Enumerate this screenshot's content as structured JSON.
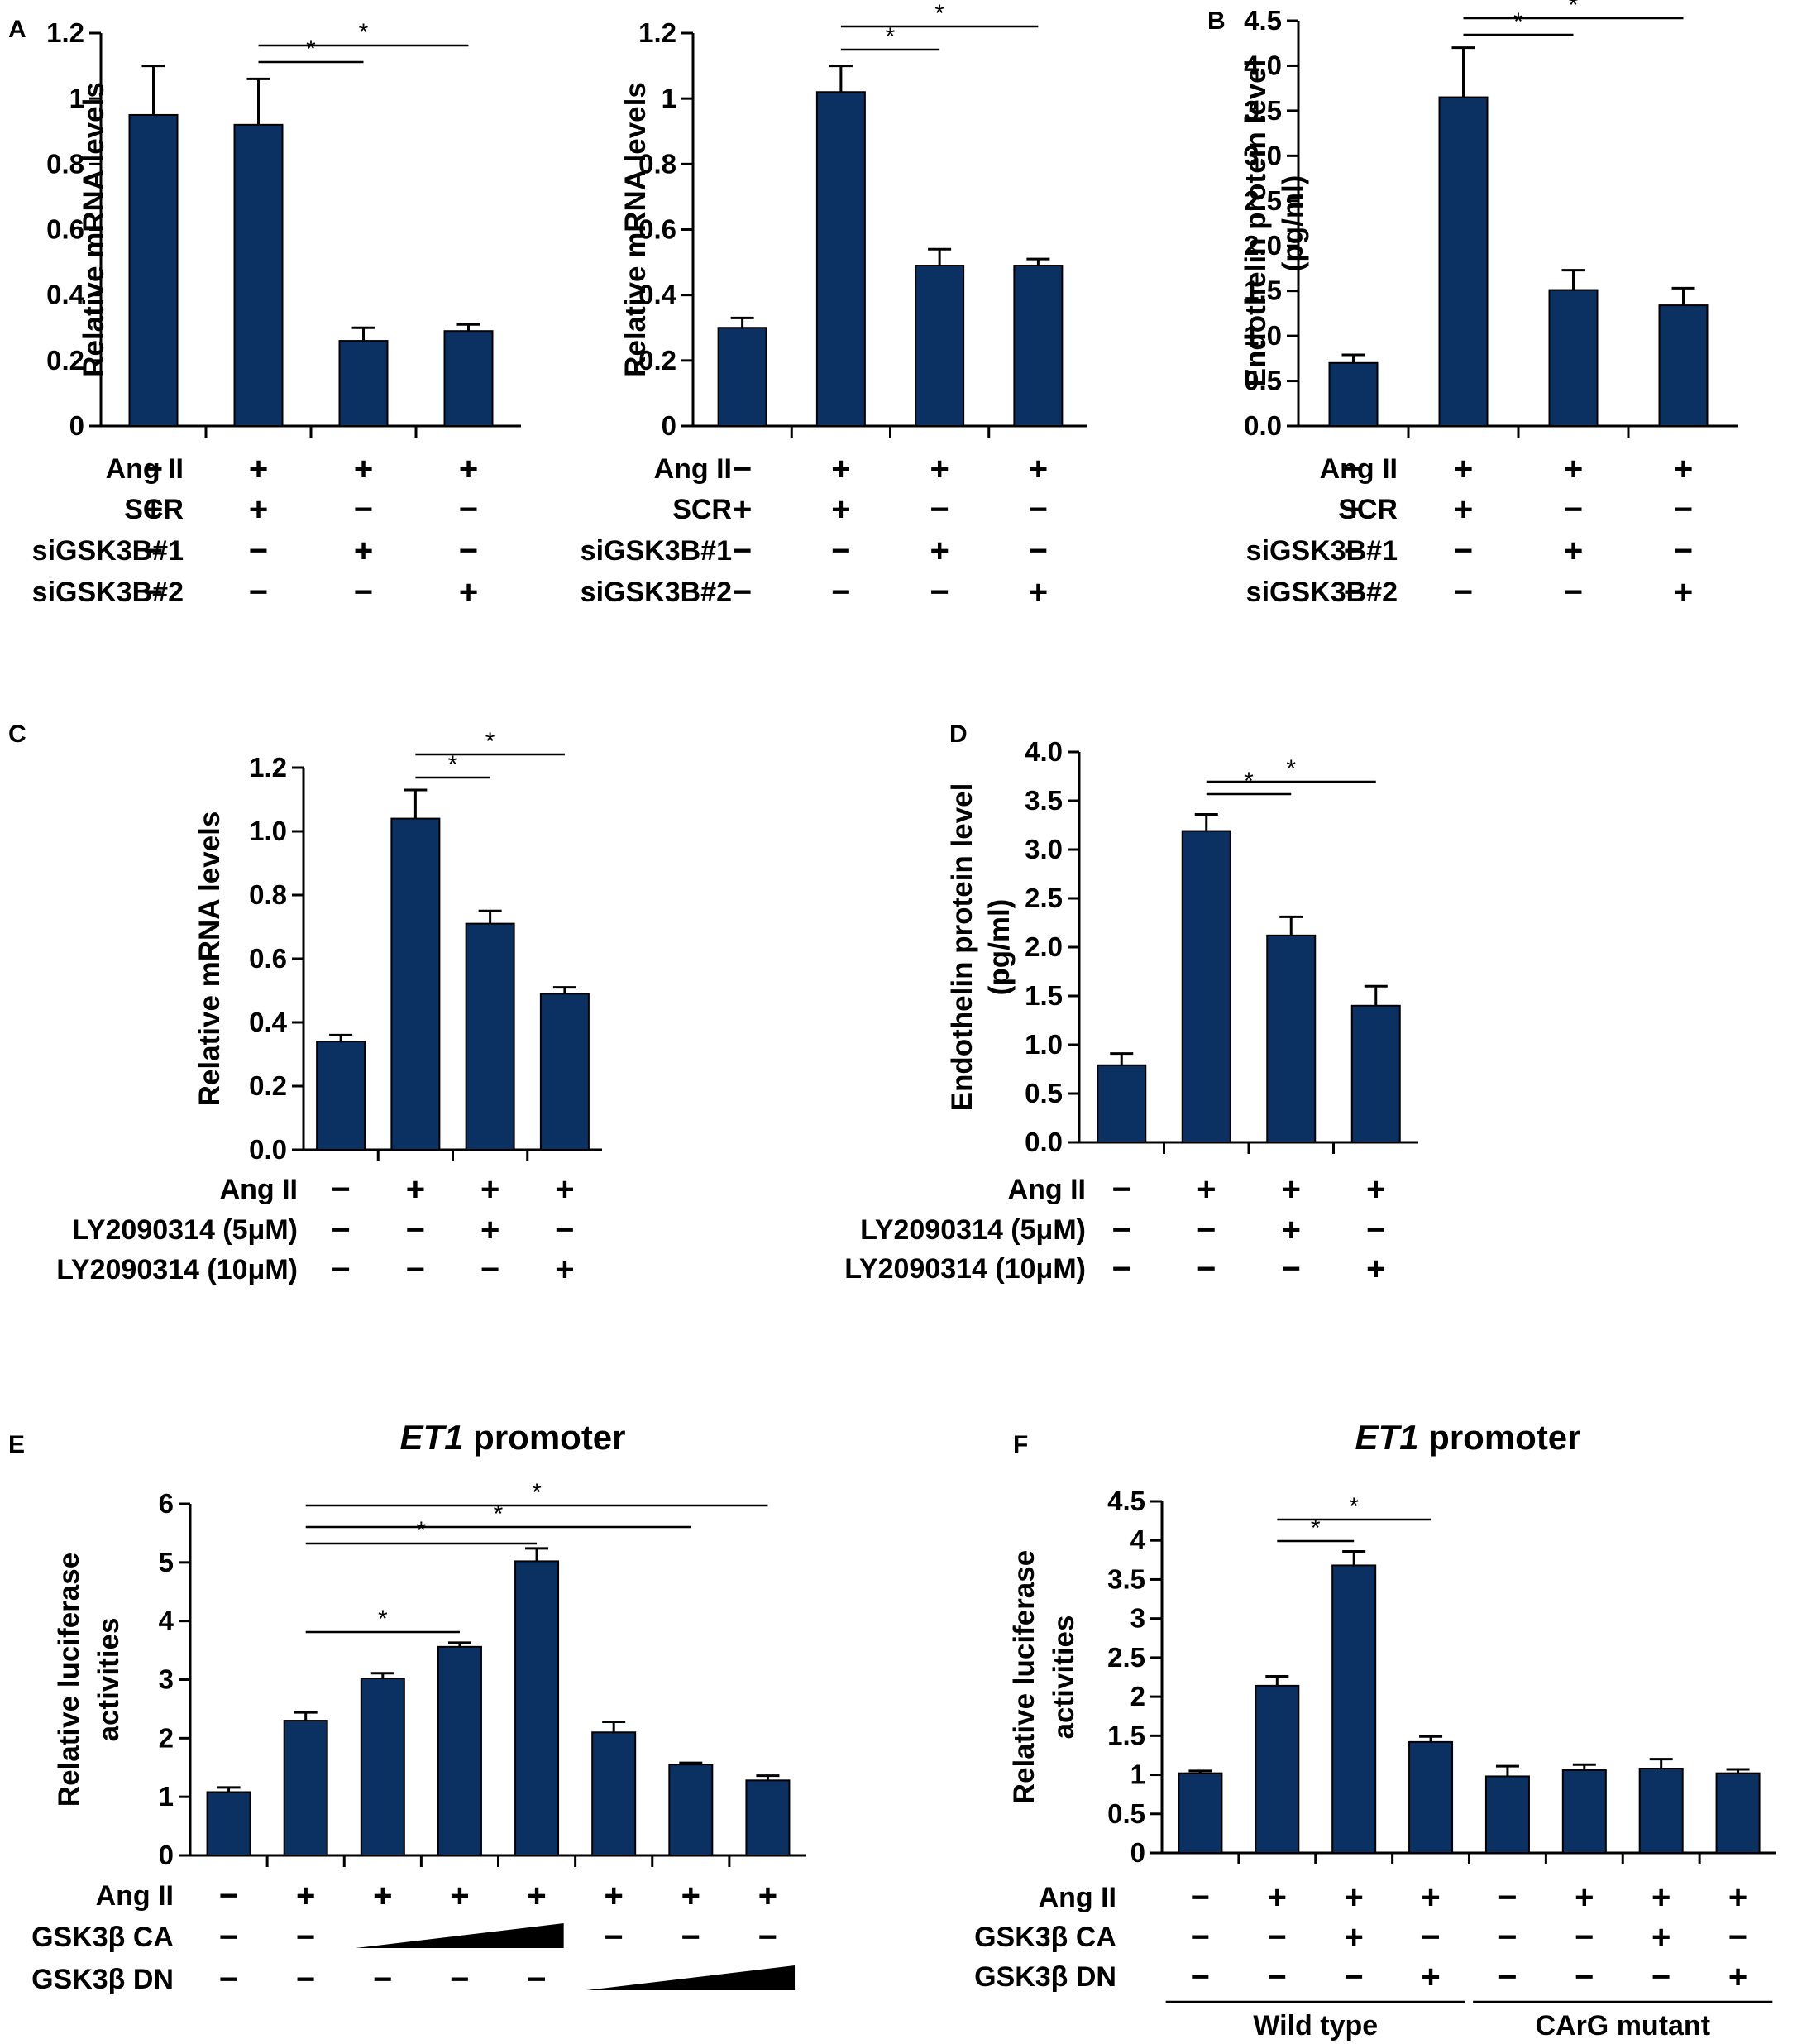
{
  "colors": {
    "bar": "#0b3163",
    "axis": "#000000"
  },
  "chart_data": [
    {
      "id": "A1",
      "panel": "A",
      "type": "bar",
      "ylabel": "Relative mRNA levels",
      "ylim": [
        0,
        1.2
      ],
      "yticks": [
        "0",
        "0.2",
        "0.4",
        "0.6",
        "0.8",
        "1",
        "1.2"
      ],
      "values": [
        0.95,
        0.92,
        0.26,
        0.29
      ],
      "errors": [
        0.15,
        0.14,
        0.04,
        0.02
      ],
      "conditions": [
        {
          "label": "Ang II",
          "marks": [
            "−",
            "+",
            "+",
            "+"
          ]
        },
        {
          "label": "SCR",
          "marks": [
            "+",
            "+",
            "−",
            "−"
          ]
        },
        {
          "label": "siGSK3B#1",
          "marks": [
            "−",
            "−",
            "+",
            "−"
          ]
        },
        {
          "label": "siGSK3B#2",
          "marks": [
            "−",
            "−",
            "−",
            "+"
          ]
        }
      ],
      "significance": [
        {
          "from": 1,
          "to": 2,
          "label": "*"
        },
        {
          "from": 1,
          "to": 3,
          "label": "*"
        }
      ]
    },
    {
      "id": "A2",
      "panel": "",
      "type": "bar",
      "ylabel": "Relative mRNA levels",
      "ylim": [
        0,
        1.2
      ],
      "yticks": [
        "0",
        "0.2",
        "0.4",
        "0.6",
        "0.8",
        "1",
        "1.2"
      ],
      "values": [
        0.3,
        1.02,
        0.49,
        0.49
      ],
      "errors": [
        0.03,
        0.08,
        0.05,
        0.02
      ],
      "conditions": [
        {
          "label": "Ang II",
          "marks": [
            "−",
            "+",
            "+",
            "+"
          ]
        },
        {
          "label": "SCR",
          "marks": [
            "+",
            "+",
            "−",
            "−"
          ]
        },
        {
          "label": "siGSK3B#1",
          "marks": [
            "−",
            "−",
            "+",
            "−"
          ]
        },
        {
          "label": "siGSK3B#2",
          "marks": [
            "−",
            "−",
            "−",
            "+"
          ]
        }
      ],
      "significance": [
        {
          "from": 1,
          "to": 2,
          "label": "*"
        },
        {
          "from": 1,
          "to": 3,
          "label": "*"
        }
      ]
    },
    {
      "id": "B",
      "panel": "B",
      "type": "bar",
      "ylabel": "Endothelin protein level",
      "ylabel2": "(pg/ml)",
      "ylim": [
        0,
        4.5
      ],
      "yticks": [
        "0.0",
        "0.5",
        "1.0",
        "1.5",
        "2.0",
        "2.5",
        "3.0",
        "3.5",
        "4.0",
        "4.5"
      ],
      "values": [
        0.7,
        3.65,
        1.51,
        1.34
      ],
      "errors": [
        0.09,
        0.55,
        0.22,
        0.19
      ],
      "conditions": [
        {
          "label": "Ang II",
          "marks": [
            "−",
            "+",
            "+",
            "+"
          ]
        },
        {
          "label": "SCR",
          "marks": [
            "+",
            "+",
            "−",
            "−"
          ]
        },
        {
          "label": "siGSK3B#1",
          "marks": [
            "−",
            "−",
            "+",
            "−"
          ]
        },
        {
          "label": "siGSK3B#2",
          "marks": [
            "−",
            "−",
            "−",
            "+"
          ]
        }
      ],
      "significance": [
        {
          "from": 1,
          "to": 2,
          "label": "*"
        },
        {
          "from": 1,
          "to": 3,
          "label": "*"
        }
      ]
    },
    {
      "id": "C",
      "panel": "C",
      "type": "bar",
      "ylabel": "Relative mRNA levels",
      "ylim": [
        0,
        1.2
      ],
      "yticks": [
        "0.0",
        "0.2",
        "0.4",
        "0.6",
        "0.8",
        "1.0",
        "1.2"
      ],
      "values": [
        0.34,
        1.04,
        0.71,
        0.49
      ],
      "errors": [
        0.02,
        0.09,
        0.04,
        0.02
      ],
      "conditions": [
        {
          "label": "Ang II",
          "marks": [
            "−",
            "+",
            "+",
            "+"
          ]
        },
        {
          "label": "LY2090314 (5μM)",
          "marks": [
            "−",
            "−",
            "+",
            "−"
          ]
        },
        {
          "label": "LY2090314 (10μM)",
          "marks": [
            "−",
            "−",
            "−",
            "+"
          ]
        }
      ],
      "significance": [
        {
          "from": 1,
          "to": 2,
          "label": "*"
        },
        {
          "from": 1,
          "to": 3,
          "label": "*"
        }
      ]
    },
    {
      "id": "D",
      "panel": "D",
      "type": "bar",
      "ylabel": "Endothelin protein level",
      "ylabel2": "(pg/ml)",
      "ylim": [
        0,
        4.0
      ],
      "yticks": [
        "0.0",
        "0.5",
        "1.0",
        "1.5",
        "2.0",
        "2.5",
        "3.0",
        "3.5",
        "4.0"
      ],
      "values": [
        0.79,
        3.19,
        2.12,
        1.4
      ],
      "errors": [
        0.12,
        0.17,
        0.19,
        0.2
      ],
      "conditions": [
        {
          "label": "Ang II",
          "marks": [
            "−",
            "+",
            "+",
            "+"
          ]
        },
        {
          "label": "LY2090314 (5μM)",
          "marks": [
            "−",
            "−",
            "+",
            "−"
          ]
        },
        {
          "label": "LY2090314 (10μM)",
          "marks": [
            "−",
            "−",
            "−",
            "+"
          ]
        }
      ],
      "significance": [
        {
          "from": 1,
          "to": 2,
          "label": "*"
        },
        {
          "from": 1,
          "to": 3,
          "label": "*"
        }
      ]
    },
    {
      "id": "E",
      "panel": "E",
      "type": "bar",
      "title_italic": "ET1",
      "title_rest": " promoter",
      "ylabel": "Relative luciferase",
      "ylabel2": "activities",
      "ylim": [
        0,
        6
      ],
      "yticks": [
        "0",
        "1",
        "2",
        "3",
        "4",
        "5",
        "6"
      ],
      "values": [
        1.08,
        2.3,
        3.02,
        3.56,
        5.02,
        2.1,
        1.55,
        1.28
      ],
      "errors": [
        0.08,
        0.14,
        0.09,
        0.07,
        0.22,
        0.18,
        0.03,
        0.08
      ],
      "conditions": [
        {
          "label": "Ang II",
          "marks": [
            "−",
            "+",
            "+",
            "+",
            "+",
            "+",
            "+",
            "+"
          ]
        },
        {
          "label": "GSK3β CA",
          "marks": [
            "−",
            "−",
            "",
            "",
            "",
            "−",
            "−",
            "−"
          ],
          "wedge": [
            2,
            4
          ]
        },
        {
          "label": "GSK3β DN",
          "marks": [
            "−",
            "−",
            "−",
            "−",
            "−",
            "",
            "",
            ""
          ],
          "wedge": [
            5,
            7
          ]
        }
      ],
      "significance": [
        {
          "from": 1,
          "to": 3,
          "label": "*"
        },
        {
          "from": 1,
          "to": 4,
          "label": "*"
        },
        {
          "from": 1,
          "to": 6,
          "label": "*"
        },
        {
          "from": 1,
          "to": 7,
          "label": "*"
        }
      ]
    },
    {
      "id": "F",
      "panel": "F",
      "type": "bar",
      "title_italic": "ET1",
      "title_rest": " promoter",
      "ylabel": "Relative luciferase",
      "ylabel2": "activities",
      "ylim": [
        0,
        4.5
      ],
      "yticks": [
        "0",
        "0.5",
        "1",
        "1.5",
        "2",
        "2.5",
        "3",
        "3.5",
        "4",
        "4.5"
      ],
      "values": [
        1.02,
        2.14,
        3.68,
        1.42,
        0.98,
        1.06,
        1.08,
        1.02
      ],
      "errors": [
        0.03,
        0.12,
        0.18,
        0.07,
        0.13,
        0.07,
        0.12,
        0.05
      ],
      "conditions": [
        {
          "label": "Ang II",
          "marks": [
            "−",
            "+",
            "+",
            "+",
            "−",
            "+",
            "+",
            "+"
          ]
        },
        {
          "label": "GSK3β CA",
          "marks": [
            "−",
            "−",
            "+",
            "−",
            "−",
            "−",
            "+",
            "−"
          ]
        },
        {
          "label": "GSK3β DN",
          "marks": [
            "−",
            "−",
            "−",
            "+",
            "−",
            "−",
            "−",
            "+"
          ]
        }
      ],
      "groups": [
        {
          "label": "Wild type",
          "from": 0,
          "to": 3
        },
        {
          "label": "CArG mutant",
          "from": 4,
          "to": 7
        }
      ],
      "significance": [
        {
          "from": 1,
          "to": 2,
          "label": "*"
        },
        {
          "from": 1,
          "to": 3,
          "label": "*"
        }
      ]
    }
  ]
}
